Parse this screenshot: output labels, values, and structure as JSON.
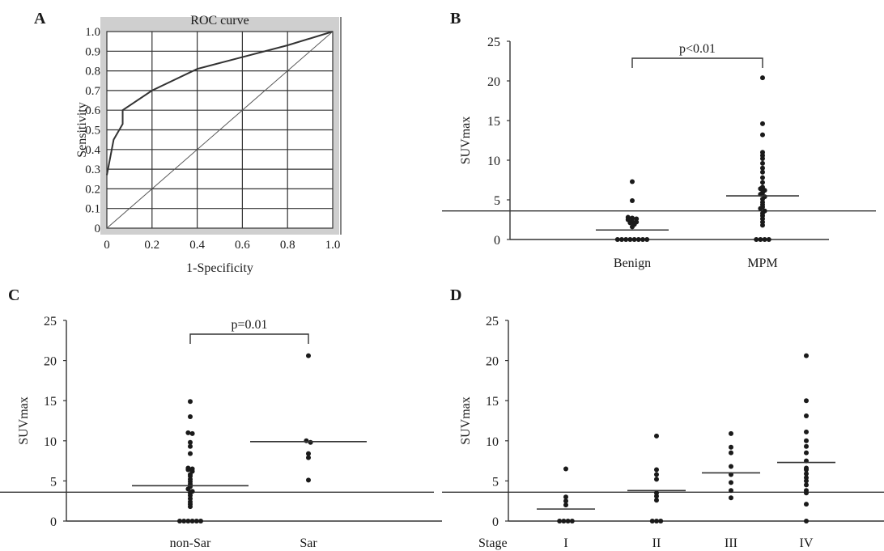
{
  "panels": {
    "a": {
      "letter": "A"
    },
    "b": {
      "letter": "B"
    },
    "c": {
      "letter": "C"
    },
    "d": {
      "letter": "D"
    }
  },
  "chart_data": [
    {
      "type": "line",
      "title": "ROC curve",
      "xlabel": "1-Specificity",
      "ylabel": "Sensitivity",
      "xlim": [
        0,
        1
      ],
      "ylim": [
        0,
        1
      ],
      "xticks": [
        "0",
        "0.2",
        "0.4",
        "0.6",
        "0.8",
        "1.0"
      ],
      "yticks": [
        "0",
        "0.1",
        "0.2",
        "0.3",
        "0.4",
        "0.5",
        "0.6",
        "0.7",
        "0.8",
        "0.9",
        "1.0"
      ],
      "grid": true,
      "series": [
        {
          "x": [
            0,
            0.03,
            0.07,
            0.07,
            0.2,
            0.4,
            0.6,
            0.8,
            1.0
          ],
          "y": [
            0.27,
            0.45,
            0.53,
            0.6,
            0.7,
            0.81,
            0.87,
            0.93,
            1.0
          ]
        },
        {
          "x": [
            0,
            1.0
          ],
          "y": [
            0,
            1.0
          ]
        }
      ]
    },
    {
      "type": "scatter",
      "ylabel": "SUVmax",
      "ylim": [
        0,
        25
      ],
      "yticks": [
        "0",
        "5",
        "10",
        "15",
        "20",
        "25"
      ],
      "categories": [
        "Benign",
        "MPM"
      ],
      "points": [
        [
          7.3,
          4.9,
          2.8,
          2.7,
          2.6,
          2.5,
          2.3,
          2.2,
          2.1,
          1.9,
          1.6,
          0.0,
          0.0,
          0.0,
          0.0,
          0.0,
          0.0,
          0.0,
          0.0
        ],
        [
          20.4,
          14.6,
          13.2,
          11.0,
          10.6,
          10.2,
          9.6,
          9.0,
          8.5,
          7.8,
          7.2,
          6.6,
          6.4,
          6.2,
          5.9,
          5.7,
          5.4,
          5.1,
          4.7,
          4.4,
          4.1,
          3.9,
          3.6,
          3.3,
          3.0,
          2.6,
          2.2,
          1.8,
          0.0,
          0.0,
          0.0,
          0.0
        ]
      ],
      "means": [
        1.2,
        5.5
      ],
      "cutoff": 3.6,
      "annotation": "p<0.01"
    },
    {
      "type": "scatter",
      "ylabel": "SUVmax",
      "ylim": [
        0,
        25
      ],
      "yticks": [
        "0",
        "5",
        "10",
        "15",
        "20",
        "25"
      ],
      "categories": [
        "non-Sar",
        "Sar"
      ],
      "points": [
        [
          14.9,
          13.0,
          11.0,
          10.9,
          9.8,
          9.3,
          8.4,
          6.6,
          6.5,
          6.4,
          6.2,
          5.8,
          5.6,
          5.2,
          4.9,
          4.6,
          4.3,
          4.0,
          3.7,
          3.5,
          3.2,
          2.8,
          2.4,
          2.1,
          1.8,
          0.0,
          0.0,
          0.0,
          0.0,
          0.0,
          0.0
        ],
        [
          20.6,
          10.0,
          9.8,
          8.4,
          7.9,
          5.1
        ]
      ],
      "means": [
        4.4,
        9.9
      ],
      "cutoff": 3.6,
      "annotation": "p=0.01"
    },
    {
      "type": "scatter",
      "ylabel": "SUVmax",
      "ylim": [
        0,
        25
      ],
      "yticks": [
        "0",
        "5",
        "10",
        "15",
        "20",
        "25"
      ],
      "xaxis_prefix": "Stage",
      "categories": [
        "I",
        "II",
        "III",
        "IV"
      ],
      "points": [
        [
          6.5,
          3.0,
          2.5,
          2.0,
          0.0,
          0.0,
          0.0,
          0.0
        ],
        [
          10.6,
          6.4,
          5.8,
          5.2,
          3.5,
          3.1,
          2.6,
          0.0,
          0.0,
          0.0
        ],
        [
          10.9,
          9.2,
          8.5,
          6.8,
          5.8,
          4.8,
          3.8,
          2.9
        ],
        [
          20.6,
          15.0,
          13.1,
          11.1,
          10.0,
          9.3,
          8.5,
          7.5,
          6.6,
          6.4,
          5.9,
          5.4,
          5.0,
          4.5,
          3.8,
          3.5,
          2.1,
          0.0
        ]
      ],
      "means": [
        1.5,
        3.8,
        6.0,
        7.3
      ],
      "cutoff": 3.6
    }
  ]
}
